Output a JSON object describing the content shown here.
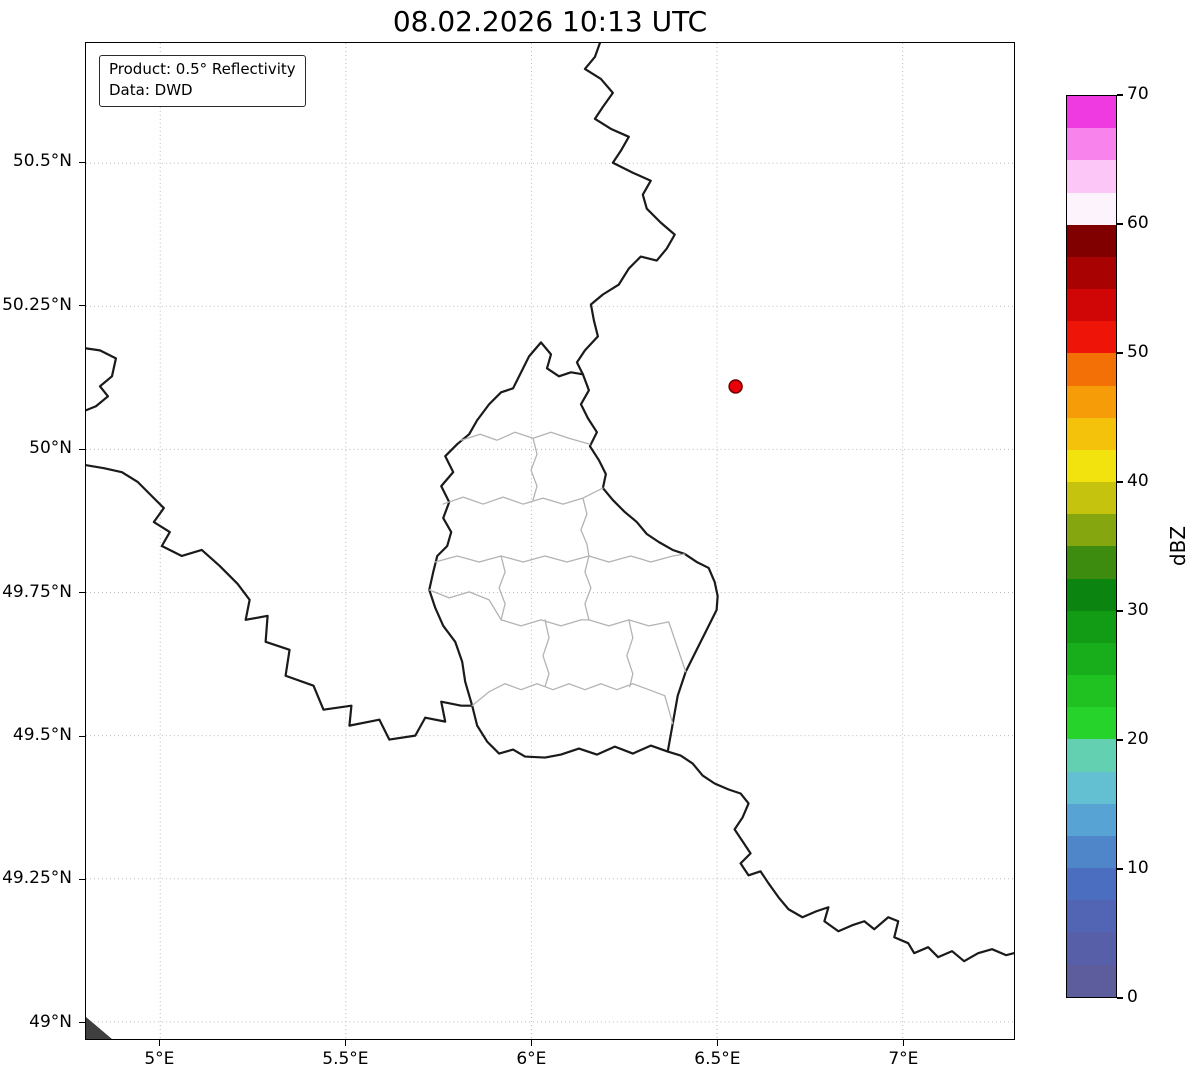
{
  "title": "08.02.2026 10:13 UTC",
  "annotation_box": {
    "line1": "Product: 0.5° Reflectivity",
    "line2": "Data: DWD"
  },
  "chart_data": {
    "type": "map",
    "title": "08.02.2026 10:13 UTC",
    "extent": {
      "lon_min": 4.8,
      "lon_max": 7.3,
      "lat_min": 48.97,
      "lat_max": 50.71
    },
    "x_ticks": [
      {
        "value": 5.0,
        "label": "5°E"
      },
      {
        "value": 5.5,
        "label": "5.5°E"
      },
      {
        "value": 6.0,
        "label": "6°E"
      },
      {
        "value": 6.5,
        "label": "6.5°E"
      },
      {
        "value": 7.0,
        "label": "7°E"
      }
    ],
    "y_ticks": [
      {
        "value": 50.5,
        "label": "50.5°N"
      },
      {
        "value": 50.25,
        "label": "50.25°N"
      },
      {
        "value": 50.0,
        "label": "50°N"
      },
      {
        "value": 49.75,
        "label": "49.75°N"
      },
      {
        "value": 49.5,
        "label": "49.5°N"
      },
      {
        "value": 49.25,
        "label": "49.25°N"
      },
      {
        "value": 49.0,
        "label": "49°N"
      }
    ],
    "gridlines": "dotted",
    "radar_site": {
      "lon": 6.55,
      "lat": 50.11,
      "marker_color": "#e8000b",
      "marker_edge_color": "#6e0000"
    },
    "reflectivity_cells": [],
    "colorbar": {
      "label": "dBZ",
      "min": 0,
      "max": 70,
      "band_step": 2.5,
      "tick_values": [
        0,
        10,
        20,
        30,
        40,
        50,
        60,
        70
      ],
      "colors_bottom_to_top": [
        "#5d5d9d",
        "#575fa8",
        "#5165b4",
        "#4b6ec0",
        "#4f86c9",
        "#57a3d4",
        "#62c0d2",
        "#64d0b2",
        "#25d32b",
        "#1fc221",
        "#18ad1b",
        "#129b14",
        "#0c8410",
        "#3d8c10",
        "#85a60f",
        "#c6c30e",
        "#f2e20d",
        "#f4c20b",
        "#f59c08",
        "#f27006",
        "#ee1407",
        "#d00505",
        "#a80202",
        "#800000",
        "#fdf3fd",
        "#fcc7f7",
        "#f983ec",
        "#ee3ae0"
      ]
    }
  }
}
